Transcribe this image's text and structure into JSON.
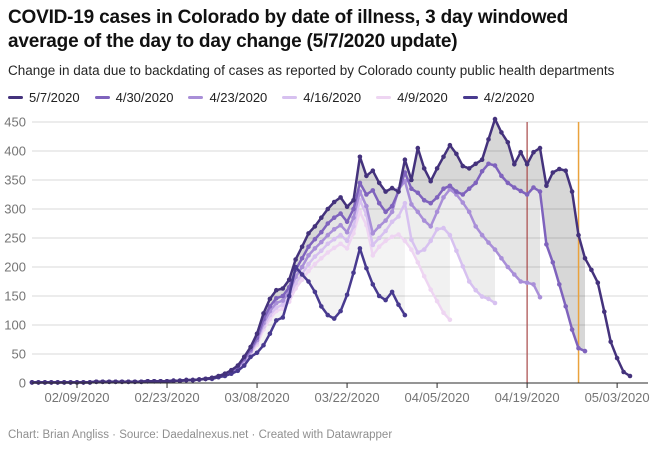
{
  "header": {
    "title": "COVID-19 cases in Colorado by date of illness, 3 day windowed average of the day to day change (5/7/2020 update)",
    "subtitle": "Change in data due to backdating of cases as reported by Colorado county public health departments"
  },
  "legend": {
    "items": [
      {
        "label": "5/7/2020",
        "color": "#44327c"
      },
      {
        "label": "4/30/2020",
        "color": "#7f63bd"
      },
      {
        "label": "4/23/2020",
        "color": "#a98fd8"
      },
      {
        "label": "4/16/2020",
        "color": "#d7c1f0"
      },
      {
        "label": "4/9/2020",
        "color": "#eed5f2"
      },
      {
        "label": "4/2/2020",
        "color": "#483a8f"
      }
    ]
  },
  "footer": {
    "text": "Chart: Brian Angliss · Source: Daedalnexus.net · Created with Datawrapper"
  },
  "chart_data": {
    "type": "line",
    "title": "COVID-19 cases in Colorado by date of illness, 3 day windowed average of the day to day change (5/7/2020 update)",
    "xlabel": "",
    "ylabel": "",
    "ylim": [
      0,
      450
    ],
    "yticks": [
      0,
      50,
      100,
      150,
      200,
      250,
      300,
      350,
      400,
      450
    ],
    "grid": "horizontal",
    "legend_position": "top",
    "x_dates": [
      "02/02/2020",
      "02/03/2020",
      "02/04/2020",
      "02/05/2020",
      "02/06/2020",
      "02/07/2020",
      "02/08/2020",
      "02/09/2020",
      "02/10/2020",
      "02/11/2020",
      "02/12/2020",
      "02/13/2020",
      "02/14/2020",
      "02/15/2020",
      "02/16/2020",
      "02/17/2020",
      "02/18/2020",
      "02/19/2020",
      "02/20/2020",
      "02/21/2020",
      "02/22/2020",
      "02/23/2020",
      "02/24/2020",
      "02/25/2020",
      "02/26/2020",
      "02/27/2020",
      "02/28/2020",
      "02/29/2020",
      "03/01/2020",
      "03/02/2020",
      "03/03/2020",
      "03/04/2020",
      "03/05/2020",
      "03/06/2020",
      "03/07/2020",
      "03/08/2020",
      "03/09/2020",
      "03/10/2020",
      "03/11/2020",
      "03/12/2020",
      "03/13/2020",
      "03/14/2020",
      "03/15/2020",
      "03/16/2020",
      "03/17/2020",
      "03/18/2020",
      "03/19/2020",
      "03/20/2020",
      "03/21/2020",
      "03/22/2020",
      "03/23/2020",
      "03/24/2020",
      "03/25/2020",
      "03/26/2020",
      "03/27/2020",
      "03/28/2020",
      "03/29/2020",
      "03/30/2020",
      "03/31/2020",
      "04/01/2020",
      "04/02/2020",
      "04/03/2020",
      "04/04/2020",
      "04/05/2020",
      "04/06/2020",
      "04/07/2020",
      "04/08/2020",
      "04/09/2020",
      "04/10/2020",
      "04/11/2020",
      "04/12/2020",
      "04/13/2020",
      "04/14/2020",
      "04/15/2020",
      "04/16/2020",
      "04/17/2020",
      "04/18/2020",
      "04/19/2020",
      "04/20/2020",
      "04/21/2020",
      "04/22/2020",
      "04/23/2020",
      "04/24/2020",
      "04/25/2020",
      "04/26/2020",
      "04/27/2020",
      "04/28/2020",
      "04/29/2020",
      "04/30/2020",
      "05/01/2020",
      "05/02/2020",
      "05/03/2020",
      "05/04/2020",
      "05/05/2020"
    ],
    "xtick_labels": [
      "02/09/2020",
      "02/23/2020",
      "03/08/2020",
      "03/22/2020",
      "04/05/2020",
      "04/19/2020",
      "05/03/2020"
    ],
    "xtick_indices": [
      7,
      21,
      35,
      49,
      63,
      77,
      91
    ],
    "series": [
      {
        "name": "5/7/2020",
        "color": "#44327c",
        "values": [
          1,
          1,
          1,
          1,
          1,
          1,
          1,
          1,
          1,
          1,
          2,
          2,
          2,
          2,
          2,
          2,
          2,
          2,
          3,
          3,
          3,
          3,
          4,
          4,
          5,
          5,
          6,
          7,
          9,
          12,
          16,
          22,
          30,
          45,
          62,
          85,
          120,
          145,
          160,
          163,
          178,
          213,
          235,
          258,
          270,
          285,
          300,
          312,
          320,
          304,
          315,
          390,
          357,
          366,
          345,
          330,
          336,
          330,
          385,
          350,
          405,
          370,
          348,
          370,
          390,
          410,
          395,
          374,
          370,
          378,
          385,
          420,
          455,
          432,
          415,
          377,
          398,
          377,
          398,
          405,
          340,
          363,
          369,
          366,
          330,
          255,
          215,
          195,
          173,
          123,
          71,
          43,
          19,
          12
        ]
      },
      {
        "name": "4/30/2020",
        "color": "#7f63bd",
        "values": [
          1,
          1,
          1,
          1,
          1,
          1,
          1,
          1,
          1,
          1,
          2,
          2,
          2,
          2,
          2,
          2,
          2,
          2,
          3,
          3,
          3,
          3,
          4,
          4,
          5,
          5,
          6,
          7,
          9,
          11,
          15,
          21,
          28,
          42,
          58,
          78,
          110,
          132,
          146,
          150,
          165,
          195,
          215,
          235,
          248,
          260,
          275,
          285,
          292,
          278,
          300,
          345,
          325,
          332,
          310,
          295,
          305,
          330,
          363,
          335,
          328,
          315,
          310,
          320,
          335,
          340,
          330,
          325,
          335,
          345,
          365,
          378,
          375,
          357,
          345,
          337,
          331,
          325,
          337,
          330,
          239,
          208,
          170,
          132,
          92,
          60,
          55
        ]
      },
      {
        "name": "4/23/2020",
        "color": "#a98fd8",
        "values": [
          1,
          1,
          1,
          1,
          1,
          1,
          1,
          1,
          1,
          1,
          2,
          2,
          2,
          2,
          2,
          2,
          2,
          2,
          3,
          3,
          3,
          3,
          4,
          4,
          5,
          5,
          6,
          7,
          8,
          11,
          14,
          20,
          27,
          40,
          55,
          74,
          103,
          124,
          138,
          142,
          157,
          183,
          200,
          220,
          232,
          243,
          255,
          265,
          272,
          260,
          285,
          330,
          305,
          258,
          270,
          280,
          295,
          334,
          348,
          308,
          295,
          280,
          270,
          295,
          320,
          334,
          325,
          311,
          295,
          270,
          255,
          242,
          230,
          215,
          200,
          187,
          175,
          173,
          170,
          148
        ]
      },
      {
        "name": "4/16/2020",
        "color": "#d7c1f0",
        "values": [
          1,
          1,
          1,
          1,
          1,
          1,
          1,
          1,
          1,
          1,
          2,
          2,
          2,
          2,
          2,
          2,
          2,
          2,
          3,
          3,
          3,
          3,
          4,
          4,
          5,
          5,
          6,
          7,
          8,
          11,
          14,
          19,
          25,
          37,
          52,
          70,
          97,
          117,
          130,
          135,
          148,
          172,
          188,
          205,
          218,
          228,
          240,
          248,
          255,
          245,
          270,
          315,
          290,
          238,
          250,
          262,
          278,
          287,
          310,
          247,
          225,
          230,
          245,
          265,
          267,
          255,
          228,
          201,
          175,
          160,
          149,
          145,
          138
        ]
      },
      {
        "name": "4/9/2020",
        "color": "#eed5f2",
        "values": [
          1,
          1,
          1,
          1,
          1,
          1,
          1,
          1,
          1,
          1,
          2,
          2,
          2,
          2,
          2,
          2,
          2,
          2,
          3,
          3,
          3,
          3,
          4,
          4,
          5,
          5,
          6,
          7,
          8,
          10,
          13,
          18,
          24,
          35,
          50,
          66,
          92,
          110,
          124,
          128,
          140,
          163,
          178,
          193,
          205,
          215,
          225,
          233,
          240,
          232,
          258,
          295,
          272,
          220,
          235,
          245,
          252,
          256,
          245,
          230,
          208,
          184,
          161,
          141,
          121,
          109
        ]
      },
      {
        "name": "4/2/2020",
        "color": "#483a8f",
        "values": [
          1,
          1,
          1,
          1,
          1,
          1,
          1,
          1,
          1,
          1,
          2,
          2,
          2,
          2,
          2,
          2,
          2,
          2,
          3,
          3,
          3,
          3,
          4,
          4,
          5,
          5,
          6,
          7,
          7,
          10,
          12,
          16,
          21,
          30,
          45,
          52,
          65,
          85,
          108,
          113,
          150,
          200,
          187,
          175,
          157,
          132,
          117,
          111,
          124,
          152,
          190,
          232,
          198,
          170,
          150,
          143,
          157,
          135,
          117
        ]
      }
    ],
    "bands": [
      {
        "upper": 0,
        "lower": 1,
        "color": "rgba(20,20,20,0.17)"
      },
      {
        "upper": 1,
        "lower": 2,
        "color": "rgba(20,20,20,0.11)"
      },
      {
        "upper": 2,
        "lower": 3,
        "color": "rgba(20,20,20,0.08)"
      },
      {
        "upper": 3,
        "lower": 4,
        "color": "rgba(20,20,20,0.06)"
      },
      {
        "upper": 4,
        "lower": 5,
        "color": "rgba(20,20,20,0.05)"
      }
    ],
    "vertical_lines": [
      {
        "date": "04/19/2020",
        "index": 77,
        "color": "#a84848",
        "width": 1.2
      },
      {
        "date": "04/27/2020",
        "index": 85,
        "color": "#eaa23c",
        "width": 1.5
      }
    ]
  }
}
